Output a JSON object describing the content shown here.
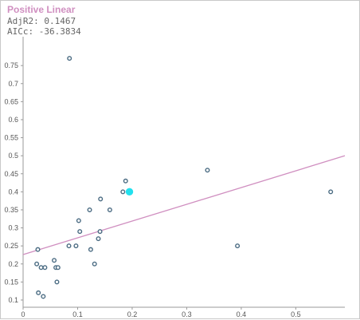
{
  "header": {
    "title": "Positive Linear",
    "stat1": "AdjR2: 0.1467",
    "stat2": "AICc: -36.3834"
  },
  "colors": {
    "title": "#d08fc0",
    "trend": "#d08fc0",
    "point_stroke": "#4a6b82",
    "highlight": "#22e0ee",
    "axis": "#9a9a9a"
  },
  "chart_data": {
    "type": "scatter",
    "title": "Positive Linear",
    "xlim": [
      0,
      0.59
    ],
    "ylim": [
      0.08,
      0.83
    ],
    "x_ticks": [
      0,
      0.1,
      0.2,
      0.3,
      0.4,
      0.5
    ],
    "x_tick_labels": [
      "0",
      "0.1",
      "0.2",
      "0.3",
      "0.4",
      "0.5"
    ],
    "y_ticks": [
      0.1,
      0.15,
      0.2,
      0.25,
      0.3,
      0.35,
      0.4,
      0.45,
      0.5,
      0.55,
      0.6,
      0.65,
      0.7,
      0.75
    ],
    "y_tick_labels": [
      "0.1",
      "0.15",
      "0.2",
      "0.25",
      "0.3",
      "0.35",
      "0.4",
      "0.45",
      "0.5",
      "0.55",
      "0.6",
      "0.65",
      "0.7",
      "0.75"
    ],
    "points": [
      {
        "x": 0.085,
        "y": 0.77
      },
      {
        "x": 0.027,
        "y": 0.24
      },
      {
        "x": 0.025,
        "y": 0.2
      },
      {
        "x": 0.033,
        "y": 0.19
      },
      {
        "x": 0.04,
        "y": 0.19
      },
      {
        "x": 0.028,
        "y": 0.12
      },
      {
        "x": 0.037,
        "y": 0.11
      },
      {
        "x": 0.057,
        "y": 0.21
      },
      {
        "x": 0.06,
        "y": 0.19
      },
      {
        "x": 0.064,
        "y": 0.19
      },
      {
        "x": 0.062,
        "y": 0.15
      },
      {
        "x": 0.084,
        "y": 0.25
      },
      {
        "x": 0.097,
        "y": 0.25
      },
      {
        "x": 0.104,
        "y": 0.29
      },
      {
        "x": 0.102,
        "y": 0.32
      },
      {
        "x": 0.122,
        "y": 0.35
      },
      {
        "x": 0.124,
        "y": 0.24
      },
      {
        "x": 0.131,
        "y": 0.2
      },
      {
        "x": 0.138,
        "y": 0.27
      },
      {
        "x": 0.141,
        "y": 0.29
      },
      {
        "x": 0.142,
        "y": 0.38
      },
      {
        "x": 0.159,
        "y": 0.35
      },
      {
        "x": 0.183,
        "y": 0.4
      },
      {
        "x": 0.188,
        "y": 0.43
      },
      {
        "x": 0.338,
        "y": 0.46
      },
      {
        "x": 0.393,
        "y": 0.25
      },
      {
        "x": 0.564,
        "y": 0.4
      }
    ],
    "highlight_point": {
      "x": 0.195,
      "y": 0.4
    },
    "trendline": {
      "x1": 0,
      "y1": 0.226,
      "x2": 0.59,
      "y2": 0.5
    }
  }
}
